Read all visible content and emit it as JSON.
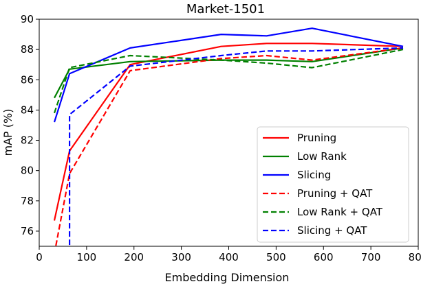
{
  "chart_data": {
    "type": "line",
    "title": "Market-1501",
    "xlabel": "Embedding Dimension",
    "ylabel": "mAP (%)",
    "xlim": [
      0,
      800
    ],
    "ylim": [
      75,
      90
    ],
    "xticks": [
      0,
      100,
      200,
      300,
      400,
      500,
      600,
      700,
      800
    ],
    "yticks": [
      76,
      78,
      80,
      82,
      84,
      86,
      88,
      90
    ],
    "grid": false,
    "legend_position": "lower-right",
    "series": [
      {
        "name": "Pruning",
        "color": "#ff0000",
        "dash": "solid",
        "x": [
          32,
          64,
          192,
          384,
          480,
          576,
          768
        ],
        "y": [
          76.7,
          81.3,
          87.0,
          88.2,
          88.4,
          88.4,
          88.2
        ]
      },
      {
        "name": "Low Rank",
        "color": "#008000",
        "dash": "solid",
        "x": [
          32,
          64,
          192,
          384,
          480,
          576,
          768
        ],
        "y": [
          84.8,
          86.7,
          87.2,
          87.3,
          87.3,
          87.2,
          88.1
        ]
      },
      {
        "name": "Slicing",
        "color": "#0000ff",
        "dash": "solid",
        "x": [
          32,
          64,
          192,
          384,
          480,
          576,
          768
        ],
        "y": [
          83.2,
          86.4,
          88.1,
          89.0,
          88.9,
          89.4,
          88.2
        ]
      },
      {
        "name": "Pruning + QAT",
        "color": "#ff0000",
        "dash": "dashed",
        "x": [
          32,
          64,
          192,
          384,
          480,
          576,
          768
        ],
        "y": [
          74.5,
          79.8,
          86.6,
          87.4,
          87.6,
          87.3,
          88.1
        ]
      },
      {
        "name": "Low Rank + QAT",
        "color": "#008000",
        "dash": "dashed",
        "x": [
          32,
          64,
          192,
          384,
          480,
          576,
          768
        ],
        "y": [
          83.8,
          86.8,
          87.6,
          87.3,
          87.1,
          86.8,
          88.0
        ]
      },
      {
        "name": "Slicing + QAT",
        "color": "#0000ff",
        "dash": "dashed",
        "x": [
          64,
          64,
          192,
          384,
          480,
          576,
          768
        ],
        "y": [
          74.0,
          83.7,
          86.9,
          87.6,
          87.9,
          87.9,
          88.1
        ]
      }
    ]
  }
}
